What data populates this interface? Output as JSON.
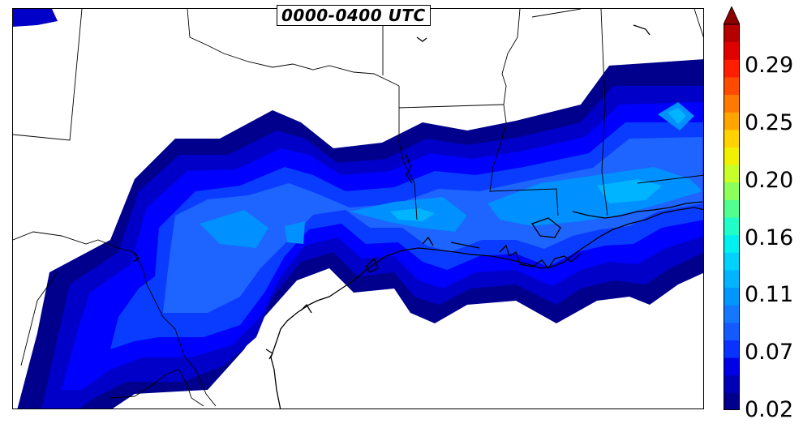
{
  "map": {
    "title": "0000-0400 UTC",
    "field_colors": [
      "#00008c",
      "#0000c8",
      "#0000ff",
      "#0a3cff",
      "#1e64ff",
      "#0090ff",
      "#00b4ff",
      "#00d8ff"
    ],
    "boundary_color": "#000000"
  },
  "colorbar": {
    "extend": "max",
    "levels_colors": [
      "#00008c",
      "#0000b4",
      "#0000e6",
      "#0a32ff",
      "#145aff",
      "#1478ff",
      "#0096ff",
      "#00b4ff",
      "#00d2ff",
      "#00f0f0",
      "#20ffc8",
      "#50ff90",
      "#8cff5a",
      "#c8ff28",
      "#f0f000",
      "#ffd200",
      "#ffa500",
      "#ff7800",
      "#ff4b00",
      "#ff1e00",
      "#e10000",
      "#b40000"
    ],
    "extend_color": "#8c0000",
    "tick_labels": [
      "0.02",
      "0.07",
      "0.11",
      "0.16",
      "0.20",
      "0.25",
      "0.29"
    ]
  }
}
